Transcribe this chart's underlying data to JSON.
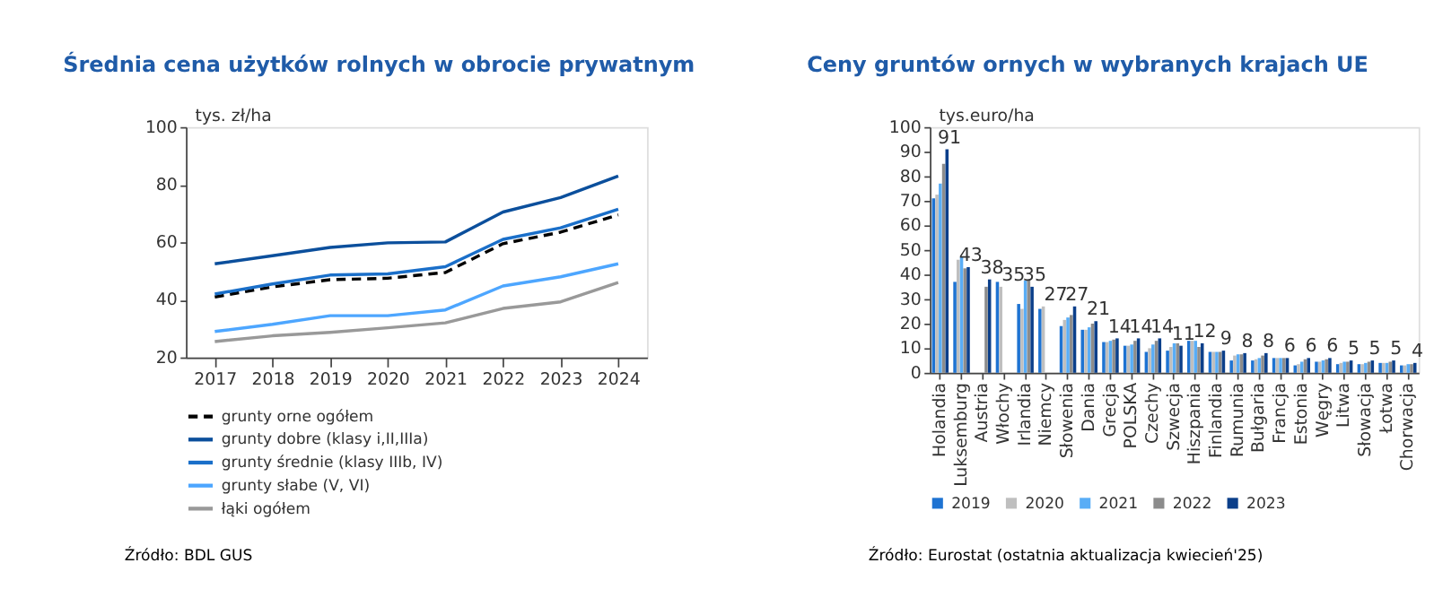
{
  "chart_data": [
    {
      "type": "line",
      "title": "Średnia cena użytków rolnych w obrocie prywatnym",
      "ylabel": "tys. zł/ha",
      "categories": [
        "2017",
        "2018",
        "2019",
        "2020",
        "2021",
        "2022",
        "2023",
        "2024"
      ],
      "ylim": [
        20,
        100
      ],
      "yticks": [
        20,
        40,
        60,
        80,
        100
      ],
      "grid": false,
      "legend": "bottom",
      "series": [
        {
          "name": "grunty orne ogółem",
          "color": "#000000",
          "line_style": "dashed",
          "values": [
            41,
            44.5,
            47,
            47.5,
            49.5,
            59.5,
            63.5,
            69.5
          ]
        },
        {
          "name": "grunty dobre (klasy i,II,IIIa)",
          "color": "#0b4f9c",
          "line_style": "solid",
          "values": [
            52.5,
            55.3,
            58.2,
            59.8,
            60.1,
            70.5,
            75.5,
            83
          ]
        },
        {
          "name": "grunty średnie (klasy IIIb, IV)",
          "color": "#1a6fc9",
          "line_style": "solid",
          "values": [
            42,
            45.5,
            48.6,
            49,
            51.5,
            61,
            65,
            71.5
          ]
        },
        {
          "name": "grunty słabe (V, VI)",
          "color": "#4da6ff",
          "line_style": "solid",
          "values": [
            29,
            31.5,
            34.5,
            34.5,
            36.5,
            44.8,
            48,
            52.5
          ]
        },
        {
          "name": "łąki ogółem",
          "color": "#999999",
          "line_style": "solid",
          "values": [
            25.5,
            27.5,
            28.7,
            30.3,
            32,
            37,
            39.3,
            46
          ]
        }
      ],
      "annotations": [
        "Źródło: BDL GUS"
      ]
    },
    {
      "type": "bar",
      "title": "Ceny gruntów ornych w wybranych krajach UE",
      "ylabel": "tys.euro/ha",
      "categories": [
        "Holandia",
        "Luksemburg",
        "Austria",
        "Włochy",
        "Irlandia",
        "Niemcy",
        "Słowenia",
        "Dania",
        "Grecja",
        "POLSKA",
        "Czechy",
        "Szwecja",
        "Hiszpania",
        "Finlandia",
        "Rumunia",
        "Bułgaria",
        "Francja",
        "Estonia",
        "Węgry",
        "Litwa",
        "Słowacja",
        "Łotwa",
        "Chorwacja"
      ],
      "ylim": [
        0,
        100
      ],
      "yticks": [
        0,
        10,
        20,
        30,
        40,
        50,
        60,
        70,
        80,
        90,
        100
      ],
      "grid": false,
      "legend": "bottom",
      "series": [
        {
          "name": "2019",
          "color": "#1e73d2",
          "values": [
            71,
            37,
            null,
            37,
            28,
            26,
            19,
            17.5,
            12.5,
            11,
            8.5,
            9,
            13,
            8.5,
            5,
            5,
            6,
            3,
            4.5,
            3.5,
            3.5,
            4,
            3
          ]
        },
        {
          "name": "2020",
          "color": "#bfbfbf",
          "values": [
            72.5,
            46,
            null,
            35,
            26,
            27,
            21.5,
            17.5,
            12.5,
            11,
            10,
            10.5,
            13,
            8.5,
            7,
            5.5,
            6,
            3.5,
            4.5,
            4,
            3.5,
            4,
            3
          ]
        },
        {
          "name": "2021",
          "color": "#59adf6",
          "values": [
            77,
            47,
            null,
            null,
            37.5,
            null,
            22.5,
            18.5,
            13,
            11.5,
            11.5,
            12,
            13,
            8.5,
            7.5,
            6,
            6,
            4.5,
            5,
            4.5,
            4,
            4,
            3.5
          ]
        },
        {
          "name": "2022",
          "color": "#8c8c8c",
          "values": [
            85,
            42.5,
            35,
            null,
            38,
            null,
            23.5,
            20,
            13.5,
            13,
            13,
            12,
            10.5,
            8.5,
            7.5,
            7,
            6,
            5.5,
            5.5,
            4.5,
            4.5,
            4.5,
            3.5
          ]
        },
        {
          "name": "2023",
          "color": "#0b3f8a",
          "values": [
            91,
            43,
            38,
            null,
            35,
            null,
            27,
            21,
            14,
            14,
            14,
            11,
            12,
            9,
            8,
            8,
            6,
            6,
            6,
            5,
            5,
            5,
            4
          ]
        }
      ],
      "annotations": [
        {
          "text": "91",
          "x": "Holandia",
          "y": 91
        },
        {
          "text": "43",
          "x": "Luksemburg",
          "y": 43
        },
        {
          "text": "38",
          "x": "Austria",
          "y": 38
        },
        {
          "text": "35",
          "x": "Włochy",
          "y": 35
        },
        {
          "text": "35",
          "x": "Irlandia",
          "y": 35
        },
        {
          "text": "27",
          "x": "Niemcy",
          "y": 27
        },
        {
          "text": "27",
          "x": "Słowenia",
          "y": 27
        },
        {
          "text": "21",
          "x": "Dania",
          "y": 21
        },
        {
          "text": "14",
          "x": "Grecja",
          "y": 14
        },
        {
          "text": "14",
          "x": "POLSKA",
          "y": 14
        },
        {
          "text": "14",
          "x": "Czechy",
          "y": 14
        },
        {
          "text": "11",
          "x": "Szwecja",
          "y": 11
        },
        {
          "text": "12",
          "x": "Hiszpania",
          "y": 12
        },
        {
          "text": "9",
          "x": "Finlandia",
          "y": 9
        },
        {
          "text": "8",
          "x": "Rumunia",
          "y": 8
        },
        {
          "text": "8",
          "x": "Bułgaria",
          "y": 8
        },
        {
          "text": "6",
          "x": "Francja",
          "y": 6
        },
        {
          "text": "6",
          "x": "Estonia",
          "y": 6
        },
        {
          "text": "6",
          "x": "Węgry",
          "y": 6
        },
        {
          "text": "5",
          "x": "Litwa",
          "y": 5
        },
        {
          "text": "5",
          "x": "Słowacja",
          "y": 5
        },
        {
          "text": "5",
          "x": "Łotwa",
          "y": 5
        },
        {
          "text": "4",
          "x": "Chorwacja",
          "y": 4
        },
        "Źródło: Eurostat (ostatnia aktualizacja kwiecień'25)"
      ]
    }
  ]
}
